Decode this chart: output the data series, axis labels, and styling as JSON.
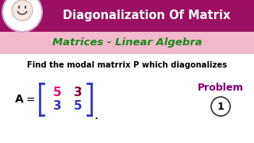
{
  "bg_color": "#ffffff",
  "header_bg": "#9b1060",
  "header_text": "Diagonalization Of Matrix",
  "header_text_color": "#ffffff",
  "subheader_text": "Matrices - Linear Algebra",
  "subheader_text_color": "#1a8a1a",
  "subheader_bg": "#f2b8cc",
  "body_text": "Find the modal matrrix P which diagonalizes",
  "body_text_color": "#000000",
  "matrix_color_top_left": "#e6007e",
  "matrix_color_top_right": "#800040",
  "matrix_color_bottom_left": "#3333cc",
  "matrix_color_bottom_right": "#3333cc",
  "bracket_color": "#3333cc",
  "problem_text": "Problem",
  "problem_color": "#7b006e",
  "circle_number": "1",
  "logo_bg": "#ffffff",
  "logo_border": "#ccaacc"
}
